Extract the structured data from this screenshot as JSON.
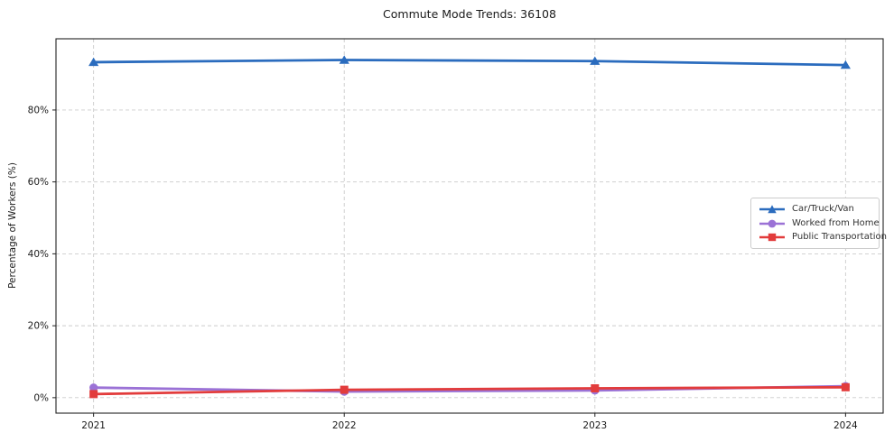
{
  "page": {
    "background": "#ffffff"
  },
  "chart_data": {
    "type": "line",
    "title": "Commute Mode Trends: 36108",
    "xlabel": "",
    "ylabel": "Percentage of Workers (%)",
    "x": [
      2021,
      2022,
      2023,
      2024
    ],
    "x_tick_labels": [
      "2021",
      "2022",
      "2023",
      "2024"
    ],
    "y_ticks": [
      0,
      20,
      40,
      60,
      80
    ],
    "y_tick_labels": [
      "0%",
      "20%",
      "40%",
      "60%",
      "80%"
    ],
    "xlim": [
      2020.85,
      2024.15
    ],
    "ylim": [
      -4.3,
      99.8
    ],
    "grid": "dashed, both axes",
    "legend_position": "center-right",
    "axis_color": "#222222",
    "grid_color": "#cccccc",
    "series": [
      {
        "name": "Car/Truck/Van",
        "color": "#2b6cbe",
        "marker": "triangle",
        "values": [
          93.3,
          93.9,
          93.6,
          92.5
        ]
      },
      {
        "name": "Worked from Home",
        "color": "#9b72d6",
        "marker": "circle",
        "values": [
          2.8,
          1.7,
          2.0,
          3.2
        ]
      },
      {
        "name": "Public Transportation",
        "color": "#e23c3c",
        "marker": "square",
        "values": [
          1.0,
          2.2,
          2.6,
          2.9
        ]
      }
    ]
  }
}
